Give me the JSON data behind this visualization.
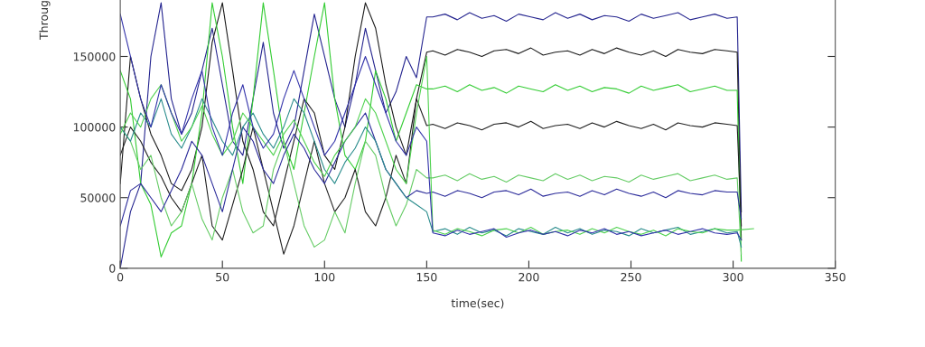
{
  "chart_data": {
    "type": "line",
    "xlabel": "time(sec)",
    "ylabel": "Throug",
    "xlim": [
      0,
      350
    ],
    "ylim": [
      0,
      190000
    ],
    "xticks": [
      0,
      50,
      100,
      150,
      200,
      250,
      300,
      350
    ],
    "yticks": [
      0,
      50000,
      100000,
      150000
    ],
    "grid": false,
    "marker": "none",
    "line_style": "solid",
    "x": [
      0,
      5,
      10,
      15,
      20,
      25,
      30,
      35,
      40,
      45,
      50,
      55,
      60,
      65,
      70,
      75,
      80,
      85,
      90,
      95,
      100,
      105,
      110,
      115,
      120,
      125,
      130,
      135,
      140,
      145,
      150,
      153,
      159,
      165,
      171,
      177,
      183,
      189,
      195,
      201,
      207,
      213,
      219,
      225,
      231,
      237,
      243,
      249,
      255,
      261,
      267,
      273,
      279,
      285,
      291,
      297,
      302,
      304
    ],
    "series": [
      {
        "color": "#24248f",
        "values": [
          0,
          40000,
          60000,
          150000,
          188000,
          120000,
          95000,
          110000,
          140000,
          170000,
          130000,
          90000,
          80000,
          120000,
          160000,
          110000,
          85000,
          100000,
          140000,
          180000,
          150000,
          120000,
          100000,
          130000,
          170000,
          140000,
          110000,
          125000,
          150000,
          135000,
          178000,
          178000,
          180000,
          176000,
          181000,
          177000,
          179000,
          175000,
          180000,
          178000,
          176000,
          181000,
          177000,
          180000,
          176000,
          179000,
          178000,
          175000,
          180000,
          177000,
          179000,
          181000,
          176000,
          178000,
          180000,
          177000,
          178000,
          40000
        ]
      },
      {
        "color": "#1a1a1a",
        "values": [
          60000,
          150000,
          120000,
          95000,
          80000,
          60000,
          55000,
          70000,
          100000,
          160000,
          188000,
          140000,
          90000,
          70000,
          40000,
          30000,
          60000,
          90000,
          120000,
          110000,
          80000,
          70000,
          100000,
          150000,
          188000,
          170000,
          130000,
          100000,
          80000,
          120000,
          153000,
          154000,
          151000,
          155000,
          153000,
          150000,
          154000,
          155000,
          152000,
          156000,
          151000,
          153000,
          154000,
          151000,
          155000,
          152000,
          156000,
          153000,
          151000,
          154000,
          150000,
          155000,
          153000,
          152000,
          155000,
          154000,
          153000,
          20000
        ]
      },
      {
        "color": "#33cc33",
        "values": [
          140000,
          120000,
          60000,
          45000,
          8000,
          25000,
          30000,
          60000,
          110000,
          188000,
          150000,
          100000,
          60000,
          120000,
          188000,
          140000,
          90000,
          70000,
          110000,
          150000,
          188000,
          120000,
          80000,
          70000,
          90000,
          140000,
          120000,
          90000,
          110000,
          130000,
          127000,
          127000,
          129000,
          125000,
          130000,
          126000,
          128000,
          124000,
          129000,
          127000,
          125000,
          130000,
          126000,
          129000,
          125000,
          128000,
          127000,
          124000,
          129000,
          126000,
          128000,
          130000,
          125000,
          127000,
          129000,
          126000,
          126000,
          5000
        ]
      },
      {
        "color": "#202020",
        "values": [
          80000,
          100000,
          90000,
          75000,
          65000,
          50000,
          40000,
          60000,
          80000,
          30000,
          20000,
          45000,
          70000,
          100000,
          70000,
          40000,
          10000,
          30000,
          60000,
          90000,
          60000,
          40000,
          50000,
          70000,
          40000,
          30000,
          50000,
          80000,
          60000,
          120000,
          101000,
          102000,
          99000,
          103000,
          101000,
          98000,
          102000,
          103000,
          100000,
          104000,
          99000,
          101000,
          102000,
          99000,
          103000,
          100000,
          104000,
          101000,
          99000,
          102000,
          98000,
          103000,
          101000,
          100000,
          103000,
          102000,
          101000,
          30000
        ]
      },
      {
        "color": "#66cc66",
        "values": [
          100000,
          90000,
          70000,
          80000,
          50000,
          30000,
          40000,
          60000,
          35000,
          20000,
          50000,
          70000,
          40000,
          25000,
          30000,
          70000,
          90000,
          60000,
          30000,
          15000,
          20000,
          40000,
          25000,
          60000,
          90000,
          80000,
          50000,
          30000,
          45000,
          70000,
          64000,
          64000,
          66000,
          62000,
          67000,
          63000,
          65000,
          61000,
          66000,
          64000,
          62000,
          67000,
          63000,
          66000,
          62000,
          65000,
          64000,
          61000,
          66000,
          63000,
          65000,
          67000,
          62000,
          64000,
          66000,
          63000,
          64000,
          10000
        ]
      },
      {
        "color": "#2b2b9a",
        "values": [
          30000,
          55000,
          60000,
          50000,
          40000,
          55000,
          70000,
          90000,
          80000,
          60000,
          40000,
          70000,
          100000,
          90000,
          70000,
          60000,
          80000,
          95000,
          85000,
          70000,
          60000,
          75000,
          90000,
          100000,
          110000,
          90000,
          70000,
          60000,
          50000,
          55000,
          53000,
          54000,
          51000,
          55000,
          53000,
          50000,
          54000,
          55000,
          52000,
          56000,
          51000,
          53000,
          54000,
          51000,
          55000,
          52000,
          56000,
          53000,
          51000,
          54000,
          50000,
          55000,
          53000,
          52000,
          55000,
          54000,
          54000,
          35000
        ]
      },
      {
        "color": "#2a8c8c",
        "values": [
          100000,
          90000,
          110000,
          100000,
          120000,
          95000,
          85000,
          100000,
          120000,
          105000,
          90000,
          80000,
          100000,
          110000,
          95000,
          85000,
          100000,
          120000,
          110000,
          90000,
          70000,
          60000,
          75000,
          85000,
          100000,
          90000,
          70000,
          60000,
          50000,
          45000,
          40000,
          26000,
          28000,
          24000,
          29000,
          25000,
          27000,
          23000,
          28000,
          26000,
          24000,
          29000,
          25000,
          28000,
          24000,
          27000,
          26000,
          23000,
          28000,
          25000,
          27000,
          29000,
          24000,
          26000,
          28000,
          25000,
          26000,
          15000
        ]
      },
      {
        "color": "#4fd24f",
        "x": [
          0,
          5,
          10,
          15,
          20,
          25,
          30,
          35,
          40,
          45,
          50,
          55,
          60,
          65,
          70,
          75,
          80,
          85,
          90,
          95,
          100,
          105,
          110,
          115,
          120,
          125,
          130,
          135,
          140,
          145,
          150,
          153,
          159,
          165,
          171,
          177,
          183,
          189,
          195,
          201,
          207,
          213,
          219,
          225,
          231,
          237,
          243,
          249,
          255,
          261,
          267,
          273,
          279,
          285,
          291,
          297,
          302,
          310
        ],
        "values": [
          95000,
          110000,
          100000,
          120000,
          130000,
          110000,
          90000,
          100000,
          115000,
          95000,
          80000,
          90000,
          110000,
          100000,
          90000,
          80000,
          95000,
          105000,
          90000,
          75000,
          65000,
          80000,
          90000,
          100000,
          120000,
          110000,
          90000,
          70000,
          60000,
          110000,
          150000,
          27000,
          24000,
          28000,
          26000,
          23000,
          27000,
          28000,
          25000,
          29000,
          24000,
          26000,
          27000,
          24000,
          28000,
          25000,
          29000,
          26000,
          24000,
          27000,
          23000,
          28000,
          26000,
          25000,
          28000,
          27000,
          27000,
          28000
        ]
      },
      {
        "color": "#3333aa",
        "values": [
          180000,
          150000,
          120000,
          100000,
          130000,
          110000,
          95000,
          120000,
          140000,
          100000,
          80000,
          110000,
          130000,
          100000,
          85000,
          95000,
          120000,
          140000,
          120000,
          100000,
          80000,
          90000,
          110000,
          130000,
          150000,
          130000,
          110000,
          90000,
          80000,
          100000,
          90000,
          25000,
          23000,
          27000,
          24000,
          26000,
          28000,
          22000,
          25000,
          27000,
          24000,
          26000,
          23000,
          27000,
          25000,
          28000,
          24000,
          26000,
          23000,
          25000,
          27000,
          24000,
          26000,
          28000,
          25000,
          24000,
          25000,
          20000
        ]
      }
    ]
  }
}
